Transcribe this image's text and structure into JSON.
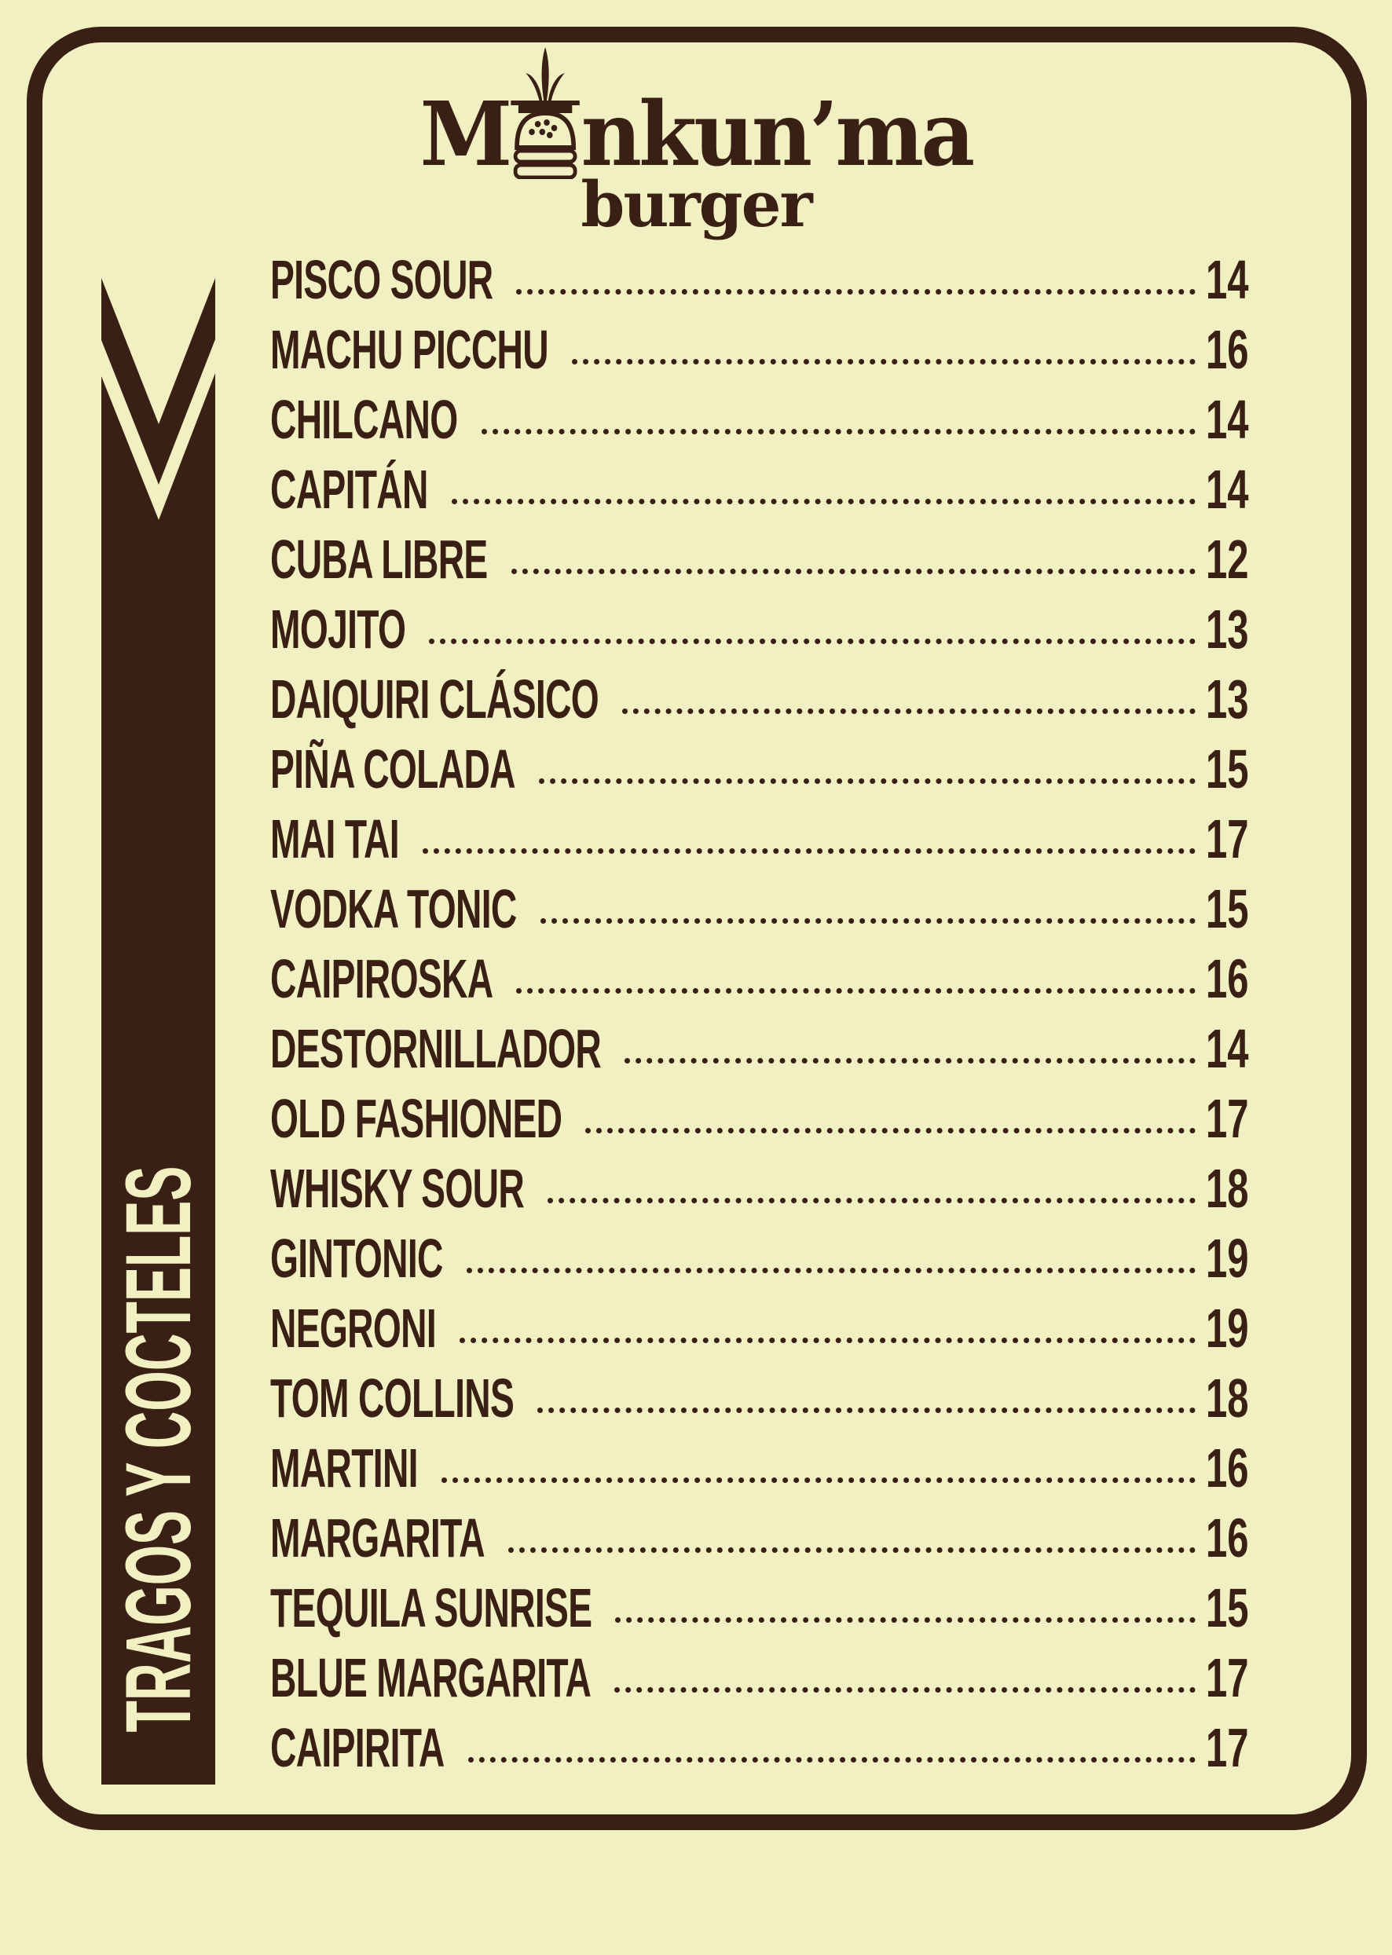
{
  "logo": {
    "brand_first": "M",
    "brand_rest": "nkun’ma",
    "brand_sub": "burger"
  },
  "section_title": "TRAGOS Y COCTELES",
  "colors": {
    "background": "#f1f0c2",
    "ink": "#3a1f14"
  },
  "items": [
    {
      "name": "PISCO SOUR",
      "price": "14"
    },
    {
      "name": "MACHU PICCHU",
      "price": "16"
    },
    {
      "name": "CHILCANO",
      "price": "14"
    },
    {
      "name": "CAPITÁN",
      "price": "14"
    },
    {
      "name": "CUBA LIBRE",
      "price": "12"
    },
    {
      "name": "MOJITO",
      "price": "13"
    },
    {
      "name": "DAIQUIRI CLÁSICO",
      "price": "13"
    },
    {
      "name": "PIÑA COLADA",
      "price": "15"
    },
    {
      "name": "MAI TAI",
      "price": "17"
    },
    {
      "name": "VODKA TONIC",
      "price": "15"
    },
    {
      "name": "CAIPIROSKA",
      "price": "16"
    },
    {
      "name": "DESTORNILLADOR",
      "price": "14"
    },
    {
      "name": "OLD FASHIONED",
      "price": "17"
    },
    {
      "name": "WHISKY SOUR",
      "price": "18"
    },
    {
      "name": "GINTONIC",
      "price": "19"
    },
    {
      "name": "NEGRONI",
      "price": "19"
    },
    {
      "name": "TOM COLLINS",
      "price": "18"
    },
    {
      "name": "MARTINI",
      "price": "16"
    },
    {
      "name": "MARGARITA",
      "price": "16"
    },
    {
      "name": "TEQUILA SUNRISE",
      "price": "15"
    },
    {
      "name": "BLUE MARGARITA",
      "price": "17"
    },
    {
      "name": "CAIPIRITA",
      "price": "17"
    }
  ]
}
